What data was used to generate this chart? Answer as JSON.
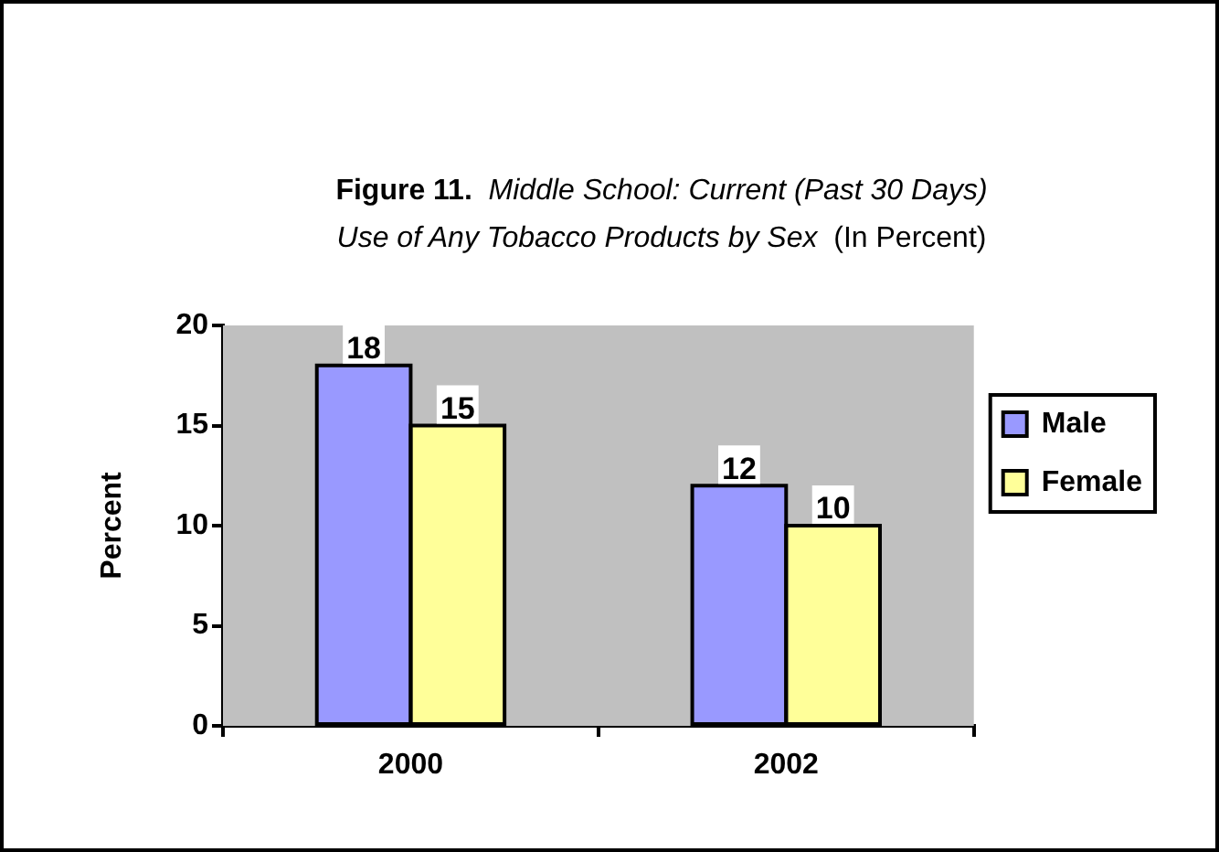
{
  "chart_data": {
    "type": "bar",
    "title": "Figure 11.  Middle School: Current (Past 30 Days) Use of Any Tobacco Products by Sex  (In Percent)",
    "ylabel": "Percent",
    "categories": [
      "2000",
      "2002"
    ],
    "series": [
      {
        "name": "Male",
        "color": "#9999ff",
        "values": [
          18,
          12
        ]
      },
      {
        "name": "Female",
        "color": "#ffff99",
        "values": [
          15,
          10
        ]
      }
    ],
    "ylim": [
      0,
      20
    ],
    "yticks": [
      0,
      5,
      10,
      15,
      20
    ],
    "grid": false,
    "legend": "right",
    "data_labels": true
  }
}
